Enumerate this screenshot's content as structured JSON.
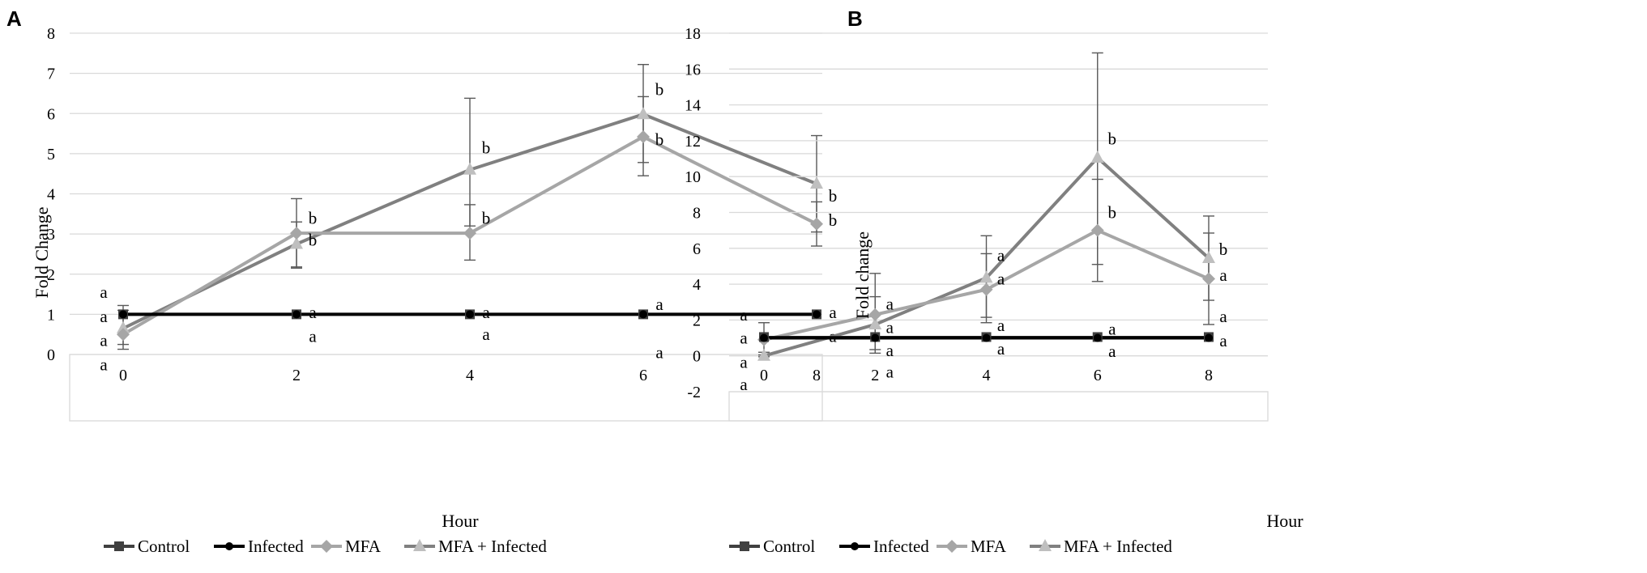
{
  "chart_data": [
    {
      "panel": "A",
      "type": "line",
      "title": "",
      "xlabel": "Hour",
      "ylabel": "Fold Change",
      "x": [
        0,
        2,
        4,
        6,
        8
      ],
      "x_ticks": [
        "0",
        "2",
        "4",
        "6",
        "8"
      ],
      "ylim": [
        0,
        8
      ],
      "y_ticks": [
        "0",
        "1",
        "2",
        "3",
        "4",
        "5",
        "6",
        "7",
        "8"
      ],
      "grid": true,
      "legend_position": "bottom",
      "series": [
        {
          "name": "Control",
          "color": "#404040",
          "marker": "square",
          "values": [
            1,
            1,
            1,
            1,
            1
          ]
        },
        {
          "name": "Infected",
          "color": "#000000",
          "marker": "circle",
          "values": [
            1,
            1,
            1,
            1,
            1
          ]
        },
        {
          "name": "MFA",
          "color": "#a6a6a6",
          "marker": "diamond",
          "values": [
            0.5,
            3.02,
            3.02,
            5.42,
            3.25
          ]
        },
        {
          "name": "MFA + Infected",
          "color": "#808080",
          "marker": "triangle",
          "values": [
            0.65,
            2.75,
            4.6,
            5.98,
            4.25
          ]
        }
      ],
      "error_bars": [
        {
          "series": "MFA",
          "low": [
            0.13,
            2.18,
            2.35,
            4.45,
            3.05
          ],
          "high": [
            1.22,
            3.88,
            3.73,
            6.42,
            3.8
          ]
        },
        {
          "series": "MFA + Infected",
          "low": [
            0.25,
            2.15,
            3.2,
            4.78,
            2.7
          ],
          "high": [
            1.1,
            3.3,
            6.38,
            7.22,
            5.45
          ]
        }
      ],
      "annotations": [
        {
          "x": 0,
          "y": 1.55,
          "text": "a"
        },
        {
          "x": 0,
          "y": 0.95,
          "text": "a"
        },
        {
          "x": 0,
          "y": 0.35,
          "text": "a"
        },
        {
          "x": 0,
          "y": -0.25,
          "text": "a"
        },
        {
          "x": 2,
          "y": 3.4,
          "text": "b"
        },
        {
          "x": 2,
          "y": 2.85,
          "text": "b"
        },
        {
          "x": 2,
          "y": 1.05,
          "text": "a"
        },
        {
          "x": 2,
          "y": 0.45,
          "text": "a"
        },
        {
          "x": 4,
          "y": 5.15,
          "text": "b"
        },
        {
          "x": 4,
          "y": 3.4,
          "text": "b"
        },
        {
          "x": 4,
          "y": 1.05,
          "text": "a"
        },
        {
          "x": 4,
          "y": 0.5,
          "text": "a"
        },
        {
          "x": 6,
          "y": 6.6,
          "text": "b"
        },
        {
          "x": 6,
          "y": 5.35,
          "text": "b"
        },
        {
          "x": 6,
          "y": 1.25,
          "text": "a"
        },
        {
          "x": 6,
          "y": 0.05,
          "text": "a"
        },
        {
          "x": 8,
          "y": 3.95,
          "text": "b"
        },
        {
          "x": 8,
          "y": 3.35,
          "text": "b"
        },
        {
          "x": 8,
          "y": 1.05,
          "text": "a"
        },
        {
          "x": 8,
          "y": 0.45,
          "text": "a"
        }
      ]
    },
    {
      "panel": "B",
      "type": "line",
      "title": "",
      "xlabel": "Hour",
      "ylabel": "Fold change",
      "x": [
        0,
        2,
        4,
        6,
        8
      ],
      "x_ticks": [
        "0",
        "2",
        "4",
        "6",
        "8"
      ],
      "ylim": [
        -2,
        18
      ],
      "y_ticks": [
        "-2",
        "0",
        "2",
        "4",
        "6",
        "8",
        "10",
        "12",
        "14",
        "16",
        "18"
      ],
      "grid": true,
      "legend_position": "bottom",
      "series": [
        {
          "name": "Control",
          "color": "#404040",
          "marker": "square",
          "values": [
            1.05,
            1.05,
            1.05,
            1.05,
            1.05
          ]
        },
        {
          "name": "Infected",
          "color": "#000000",
          "marker": "circle",
          "values": [
            1,
            1,
            1,
            1,
            1
          ]
        },
        {
          "name": "MFA",
          "color": "#a6a6a6",
          "marker": "diamond",
          "values": [
            0.9,
            2.3,
            3.7,
            7.0,
            4.3
          ]
        },
        {
          "name": "MFA + Infected",
          "color": "#808080",
          "marker": "triangle",
          "values": [
            0,
            1.75,
            4.35,
            11.05,
            5.45
          ]
        }
      ],
      "error_bars": [
        {
          "series": "MFA",
          "low": [
            0.2,
            0.35,
            1.85,
            4.15,
            1.75
          ],
          "high": [
            1.85,
            4.6,
            5.7,
            9.85,
            6.85
          ]
        },
        {
          "series": "MFA + Infected",
          "low": [
            -0.05,
            0.15,
            2.15,
            5.1,
            3.1
          ],
          "high": [
            0.05,
            3.3,
            6.7,
            16.9,
            7.8
          ]
        }
      ],
      "annotations": [
        {
          "x": 0,
          "y": 2.3,
          "text": "a"
        },
        {
          "x": 0,
          "y": 1.0,
          "text": "a"
        },
        {
          "x": 0,
          "y": -0.35,
          "text": "a"
        },
        {
          "x": 0,
          "y": -1.6,
          "text": "a"
        },
        {
          "x": 2,
          "y": 2.9,
          "text": "a"
        },
        {
          "x": 2,
          "y": 1.6,
          "text": "a"
        },
        {
          "x": 2,
          "y": 0.3,
          "text": "a"
        },
        {
          "x": 2,
          "y": -0.9,
          "text": "a"
        },
        {
          "x": 4,
          "y": 5.6,
          "text": "a"
        },
        {
          "x": 4,
          "y": 4.3,
          "text": "a"
        },
        {
          "x": 4,
          "y": 1.7,
          "text": "a"
        },
        {
          "x": 4,
          "y": 0.4,
          "text": "a"
        },
        {
          "x": 6,
          "y": 12.1,
          "text": "b"
        },
        {
          "x": 6,
          "y": 8.0,
          "text": "b"
        },
        {
          "x": 6,
          "y": 1.5,
          "text": "a"
        },
        {
          "x": 6,
          "y": 0.25,
          "text": "a"
        },
        {
          "x": 8,
          "y": 5.95,
          "text": "b"
        },
        {
          "x": 8,
          "y": 4.5,
          "text": "a"
        },
        {
          "x": 8,
          "y": 2.2,
          "text": "a"
        },
        {
          "x": 8,
          "y": 0.85,
          "text": "a"
        }
      ]
    }
  ],
  "panels": [
    {
      "label": "A"
    },
    {
      "label": "B"
    }
  ]
}
